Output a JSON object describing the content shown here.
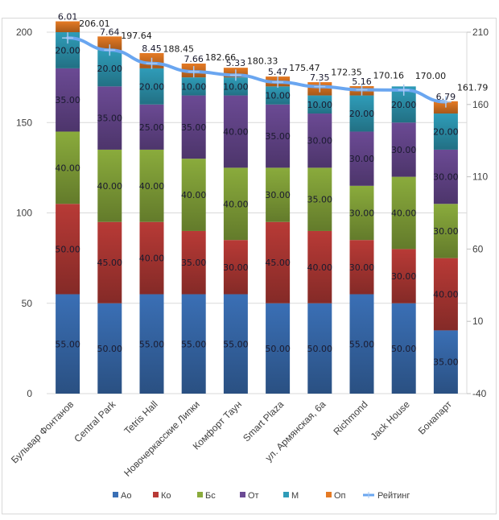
{
  "chart_data": {
    "type": "bar",
    "subtype": "stacked-bar-with-line",
    "title": "",
    "xlabel": "",
    "ylabel": "",
    "categories": [
      "Бульвар Фонтанов",
      "Central Park",
      "Tetris Hall",
      "Новочеркасские Липки",
      "Комфорт Таун",
      "Smart Plaza",
      "ул. Армянская, 6а",
      "Richmond",
      "Jack House",
      "Бонапарт"
    ],
    "series": [
      {
        "name": "Ао",
        "color": "#3a6fb5",
        "values": [
          55,
          50,
          55,
          55,
          55,
          50,
          50,
          55,
          50,
          35
        ],
        "labels": [
          "55.00",
          "50.00",
          "55.00",
          "55.00",
          "55.00",
          "50.00",
          "50.00",
          "55.00",
          "50.00",
          "35.00"
        ]
      },
      {
        "name": "Ко",
        "color": "#b83a36",
        "values": [
          50,
          45,
          40,
          35,
          30,
          45,
          40,
          30,
          30,
          40
        ],
        "labels": [
          "50.00",
          "45.00",
          "40.00",
          "35.00",
          "30.00",
          "45.00",
          "40.00",
          "30.00",
          "30.00",
          "40.00"
        ]
      },
      {
        "name": "Бс",
        "color": "#8aab3c",
        "values": [
          40,
          40,
          40,
          40,
          40,
          30,
          35,
          30,
          40,
          30
        ],
        "labels": [
          "40.00",
          "40.00",
          "40.00",
          "40.00",
          "40.00",
          "30.00",
          "35.00",
          "30.00",
          "40.00",
          "30.00"
        ]
      },
      {
        "name": "От",
        "color": "#6b4a94",
        "values": [
          35,
          35,
          25,
          35,
          40,
          35,
          30,
          30,
          30,
          30
        ],
        "labels": [
          "35.00",
          "35.00",
          "25.00",
          "35.00",
          "40.00",
          "35.00",
          "30.00",
          "30.00",
          "30.00",
          "30.00"
        ]
      },
      {
        "name": "М",
        "color": "#2f9cb8",
        "values": [
          20,
          20,
          20,
          10,
          10,
          10,
          10,
          20,
          20,
          20
        ],
        "labels": [
          "20.00",
          "20.00",
          "20.00",
          "10.00",
          "10.00",
          "10.00",
          "10.00",
          "20.00",
          "20.00",
          "20.00"
        ]
      },
      {
        "name": "Оп",
        "color": "#e57a24",
        "values": [
          6.01,
          7.64,
          8.45,
          7.66,
          5.33,
          5.47,
          7.35,
          5.16,
          0,
          6.79
        ],
        "labels": [
          "6.01",
          "7.64",
          "8.45",
          "7.66",
          "5.33",
          "5.47",
          "7.35",
          "5.16",
          "",
          "6.79"
        ]
      }
    ],
    "line_series": {
      "name": "Рейтинг",
      "color": "#6aa6f0",
      "axis": "secondary",
      "values": [
        206.01,
        197.64,
        188.45,
        182.66,
        180.33,
        175.47,
        172.35,
        170.16,
        170.0,
        161.79
      ],
      "labels": [
        "206.01",
        "197.64",
        "188.45",
        "182.66",
        "180.33",
        "175.47",
        "172.35",
        "170.16",
        "170.00",
        "161.79"
      ]
    },
    "y_axis": {
      "min": 0,
      "max": 200,
      "ticks": [
        "0",
        "50",
        "100",
        "150",
        "200"
      ]
    },
    "y2_axis": {
      "min": -40,
      "max": 210,
      "ticks": [
        "-40",
        "10",
        "60",
        "110",
        "160",
        "210"
      ]
    },
    "grid": true,
    "legend_position": "bottom"
  }
}
